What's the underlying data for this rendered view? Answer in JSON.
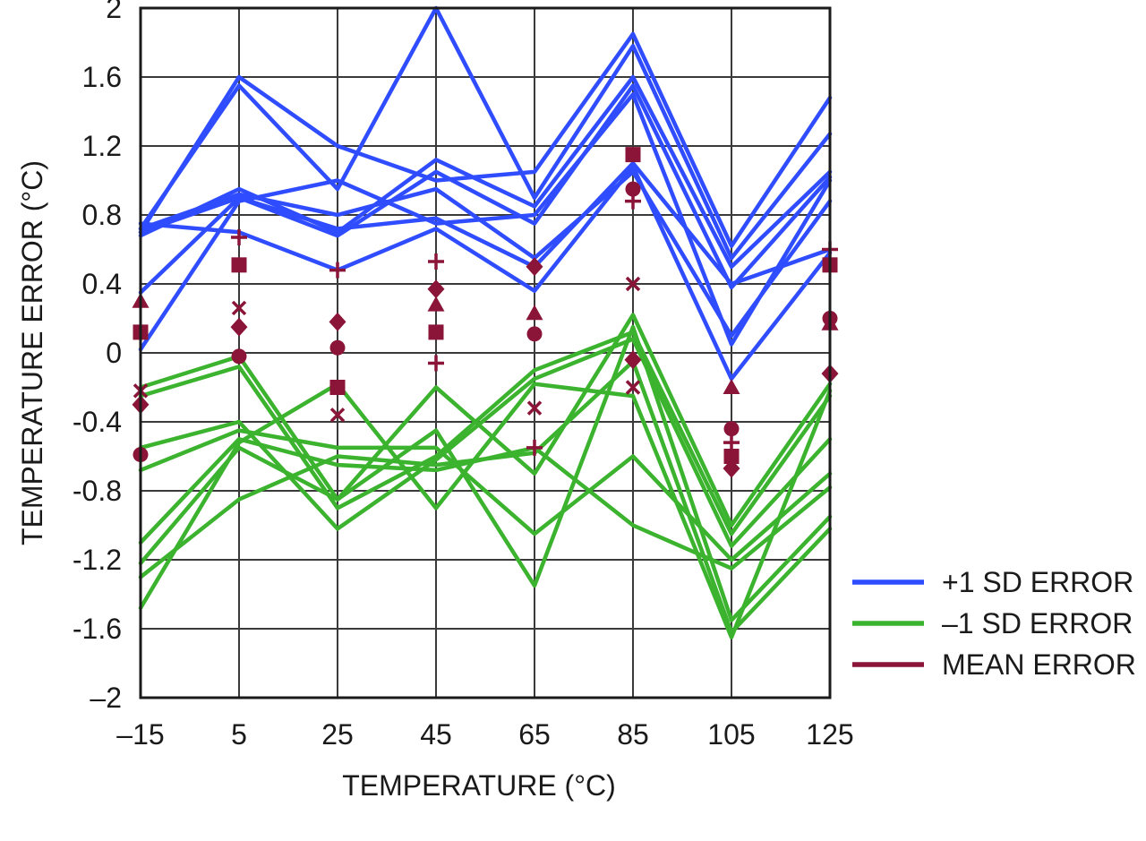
{
  "chart_data": {
    "type": "line",
    "title": "",
    "xlabel": "TEMPERATURE (°C)",
    "ylabel": "TEMPERATURE ERROR (°C)",
    "x": [
      -15,
      5,
      25,
      45,
      65,
      85,
      105,
      125
    ],
    "x_ticks": [
      "–15",
      "5",
      "25",
      "45",
      "65",
      "85",
      "105",
      "125"
    ],
    "y_ticks": [
      "2",
      "1.6",
      "1.2",
      "0.8",
      "0.4",
      "0",
      "-0.4",
      "-0.8",
      "-1.2",
      "-1.6",
      "–2"
    ],
    "xlim": [
      -15,
      125
    ],
    "ylim": [
      -2,
      2
    ],
    "grid": true,
    "legend": {
      "placement": "right",
      "entries": [
        {
          "label": "+1 SD ERROR",
          "color": "#2f4dff"
        },
        {
          "label": "–1 SD ERROR",
          "color": "#3cb32e"
        },
        {
          "label": "MEAN ERROR",
          "color": "#8a1538"
        }
      ]
    },
    "colors": {
      "plus_sd": "#2f4dff",
      "minus_sd": "#3cb32e",
      "mean": "#8a1538"
    },
    "plus_sd_series": [
      [
        0.7,
        1.6,
        1.2,
        1.0,
        1.05,
        1.85,
        0.62,
        1.48
      ],
      [
        0.72,
        1.55,
        0.95,
        2.0,
        0.9,
        1.78,
        0.55,
        1.27
      ],
      [
        0.68,
        0.95,
        0.7,
        1.12,
        0.85,
        1.6,
        0.5,
        1.05
      ],
      [
        0.35,
        0.9,
        0.68,
        1.05,
        0.75,
        1.55,
        0.38,
        1.02
      ],
      [
        0.72,
        0.92,
        0.8,
        0.95,
        0.55,
        1.05,
        0.1,
        0.88
      ],
      [
        0.75,
        0.7,
        0.48,
        0.72,
        0.36,
        1.08,
        -0.15,
        0.58
      ],
      [
        0.02,
        0.88,
        1.0,
        0.75,
        0.8,
        1.5,
        0.05,
        1.0
      ],
      [
        0.7,
        0.9,
        0.72,
        0.78,
        0.5,
        1.1,
        0.4,
        0.6
      ]
    ],
    "minus_sd_series": [
      [
        -0.2,
        -0.02,
        -0.85,
        -0.2,
        -0.7,
        0.22,
        -1.0,
        -0.18
      ],
      [
        -0.25,
        -0.08,
        -0.9,
        -0.6,
        -0.1,
        0.12,
        -1.05,
        -0.25
      ],
      [
        -0.55,
        -0.4,
        -1.02,
        -0.62,
        -0.15,
        0.08,
        -1.12,
        -0.5
      ],
      [
        -0.68,
        -0.45,
        -0.55,
        -0.55,
        -1.05,
        -0.6,
        -1.2,
        -0.7
      ],
      [
        -1.1,
        -0.5,
        -0.65,
        -0.68,
        -0.55,
        -1.0,
        -1.25,
        -0.78
      ],
      [
        -1.22,
        -0.55,
        -0.85,
        -0.45,
        -1.35,
        0.15,
        -1.55,
        -0.95
      ],
      [
        -1.3,
        -0.85,
        -0.6,
        -0.65,
        -0.58,
        -0.05,
        -1.62,
        -1.02
      ],
      [
        -1.48,
        -0.52,
        -0.18,
        -0.9,
        -0.18,
        -0.25,
        -1.65,
        -0.22
      ]
    ],
    "mean_markers": [
      {
        "x": -15,
        "y": 0.12,
        "shape": "square"
      },
      {
        "x": -15,
        "y": 0.3,
        "shape": "triangle"
      },
      {
        "x": -15,
        "y": -0.22,
        "shape": "x"
      },
      {
        "x": -15,
        "y": -0.3,
        "shape": "diamond"
      },
      {
        "x": -15,
        "y": -0.59,
        "shape": "circle"
      },
      {
        "x": 5,
        "y": 0.67,
        "shape": "plus"
      },
      {
        "x": 5,
        "y": 0.51,
        "shape": "square"
      },
      {
        "x": 5,
        "y": 0.26,
        "shape": "x"
      },
      {
        "x": 5,
        "y": 0.15,
        "shape": "diamond"
      },
      {
        "x": 5,
        "y": -0.02,
        "shape": "circle"
      },
      {
        "x": 25,
        "y": 0.48,
        "shape": "plus"
      },
      {
        "x": 25,
        "y": 0.18,
        "shape": "diamond"
      },
      {
        "x": 25,
        "y": 0.03,
        "shape": "circle"
      },
      {
        "x": 25,
        "y": -0.2,
        "shape": "square"
      },
      {
        "x": 25,
        "y": -0.36,
        "shape": "x"
      },
      {
        "x": 45,
        "y": 0.53,
        "shape": "plus"
      },
      {
        "x": 45,
        "y": 0.37,
        "shape": "diamond"
      },
      {
        "x": 45,
        "y": 0.28,
        "shape": "triangle"
      },
      {
        "x": 45,
        "y": 0.12,
        "shape": "square"
      },
      {
        "x": 45,
        "y": -0.06,
        "shape": "plus"
      },
      {
        "x": 65,
        "y": 0.5,
        "shape": "diamond"
      },
      {
        "x": 65,
        "y": 0.23,
        "shape": "triangle"
      },
      {
        "x": 65,
        "y": 0.11,
        "shape": "circle"
      },
      {
        "x": 65,
        "y": -0.32,
        "shape": "x"
      },
      {
        "x": 65,
        "y": -0.55,
        "shape": "plus"
      },
      {
        "x": 85,
        "y": 1.15,
        "shape": "square"
      },
      {
        "x": 85,
        "y": 0.95,
        "shape": "circle"
      },
      {
        "x": 85,
        "y": 0.88,
        "shape": "plus"
      },
      {
        "x": 85,
        "y": 0.4,
        "shape": "x"
      },
      {
        "x": 85,
        "y": -0.04,
        "shape": "diamond"
      },
      {
        "x": 85,
        "y": -0.2,
        "shape": "x"
      },
      {
        "x": 105,
        "y": -0.2,
        "shape": "triangle"
      },
      {
        "x": 105,
        "y": -0.44,
        "shape": "circle"
      },
      {
        "x": 105,
        "y": -0.52,
        "shape": "plus"
      },
      {
        "x": 105,
        "y": -0.6,
        "shape": "square"
      },
      {
        "x": 105,
        "y": -0.67,
        "shape": "diamond"
      },
      {
        "x": 125,
        "y": 0.6,
        "shape": "plus"
      },
      {
        "x": 125,
        "y": 0.51,
        "shape": "square"
      },
      {
        "x": 125,
        "y": 0.2,
        "shape": "circle"
      },
      {
        "x": 125,
        "y": 0.17,
        "shape": "triangle"
      },
      {
        "x": 125,
        "y": -0.12,
        "shape": "diamond"
      }
    ]
  }
}
